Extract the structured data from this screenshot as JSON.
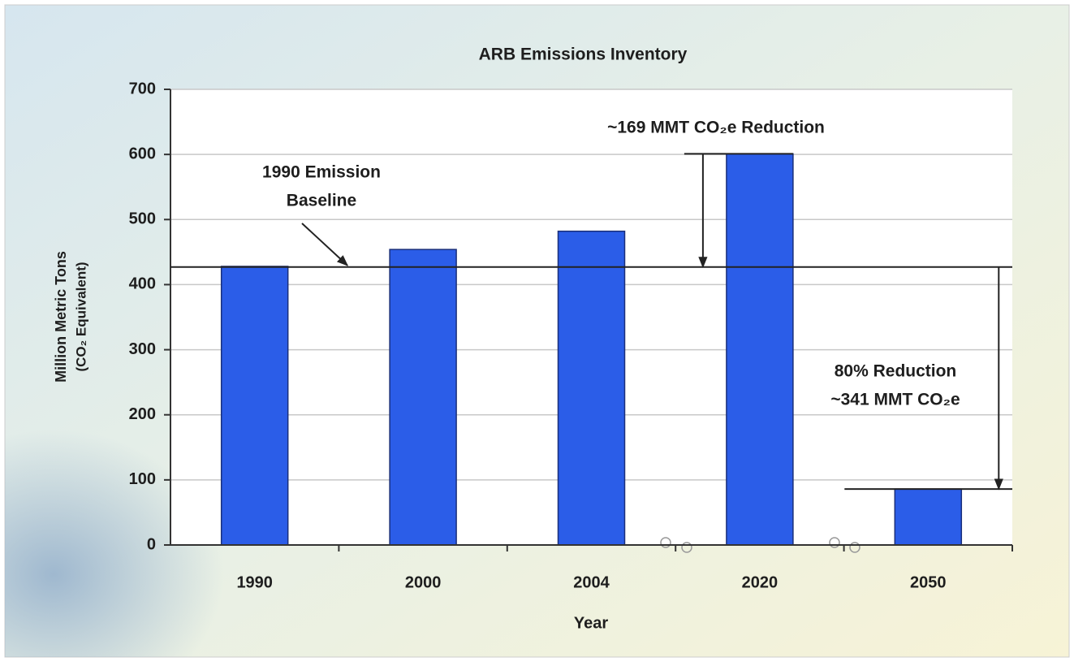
{
  "chart_data": {
    "type": "bar",
    "title": "ARB Emissions Inventory",
    "y_label_lines": [
      "Million Metric Tons",
      "(CO₂ Equivalent)"
    ],
    "x_label": "Year",
    "categories": [
      "1990",
      "2000",
      "2004",
      "2020",
      "2050"
    ],
    "values": [
      428,
      454,
      482,
      601,
      86
    ],
    "color": "#2b5de8",
    "ylim": [
      0,
      700
    ],
    "yticks": [
      0,
      100,
      200,
      300,
      400,
      500,
      600,
      700
    ],
    "grid": true,
    "baseline": 427,
    "annotations": [
      {
        "lines": [
          "1990 Emission",
          "Baseline"
        ]
      },
      {
        "lines": [
          "~169 MMT CO₂e Reduction"
        ]
      },
      {
        "lines": [
          "80% Reduction",
          "~341 MMT CO₂e"
        ]
      }
    ]
  }
}
